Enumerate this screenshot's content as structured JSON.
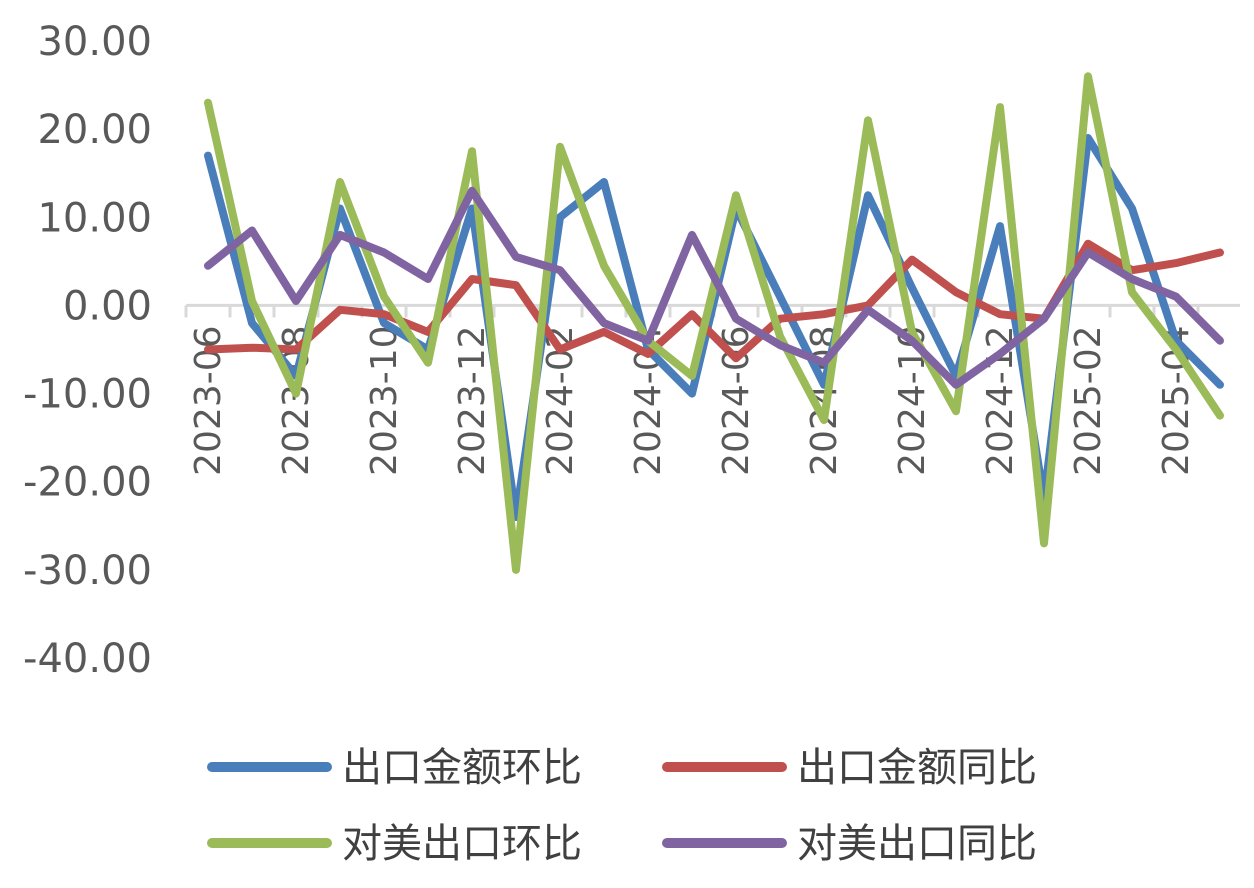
{
  "chart_data": {
    "type": "line",
    "categories": [
      "2023-06",
      "2023-07",
      "2023-08",
      "2023-09",
      "2023-10",
      "2023-11",
      "2023-12",
      "2024-01",
      "2024-02",
      "2024-03",
      "2024-04",
      "2024-05",
      "2024-06",
      "2024-07",
      "2024-08",
      "2024-09",
      "2024-10",
      "2024-11",
      "2024-12",
      "2025-01",
      "2025-02",
      "2025-03",
      "2025-04",
      "2025-05"
    ],
    "x_tick_labels": [
      "2023-06",
      "2023-08",
      "2023-10",
      "2023-12",
      "2024-02",
      "2024-04",
      "2024-06",
      "2024-08",
      "2024-10",
      "2024-12",
      "2025-02",
      "2025-04"
    ],
    "ylim": [
      -40,
      30
    ],
    "yticks": [
      30,
      20,
      10,
      0,
      -10,
      -20,
      -30,
      -40
    ],
    "ytick_labels": [
      "30.00",
      "20.00",
      "10.00",
      "0.00",
      "-10.00",
      "-20.00",
      "-30.00",
      "-40.00"
    ],
    "grid": false,
    "legend_position": "bottom",
    "series": [
      {
        "name": "出口金额环比",
        "color": "#4a7ebb",
        "values": [
          17,
          -2,
          -8,
          11,
          -2,
          -5,
          11,
          -24,
          10,
          14,
          -5,
          -10,
          11,
          1,
          -9,
          12.5,
          2,
          -8,
          9,
          -22,
          19,
          11,
          -4,
          -9
        ]
      },
      {
        "name": "出口金额同比",
        "color": "#c0504d",
        "values": [
          -5,
          -4.8,
          -5,
          -0.5,
          -1,
          -3,
          3,
          2.3,
          -5,
          -3,
          -5.5,
          -1,
          -6,
          -1.5,
          -1,
          0,
          5.2,
          1.5,
          -1,
          -1.5,
          7,
          4,
          4.8,
          6
        ]
      },
      {
        "name": "对美出口环比",
        "color": "#9bbb59",
        "values": [
          23,
          0.5,
          -10,
          14,
          1,
          -6.5,
          17.5,
          -30,
          18,
          4.5,
          -4,
          -8,
          12.5,
          -3.5,
          -13,
          21,
          -3,
          -12,
          22.5,
          -27,
          26,
          1.5,
          -5,
          -12.5
        ]
      },
      {
        "name": "对美出口同比",
        "color": "#8064a2",
        "values": [
          4.5,
          8.5,
          0.5,
          8,
          6,
          3,
          13,
          5.5,
          4,
          -2,
          -4,
          8,
          -1.5,
          -4.5,
          -6.5,
          -0.5,
          -4,
          -9,
          -5.5,
          -1.5,
          6,
          3,
          1,
          -4
        ]
      }
    ]
  }
}
